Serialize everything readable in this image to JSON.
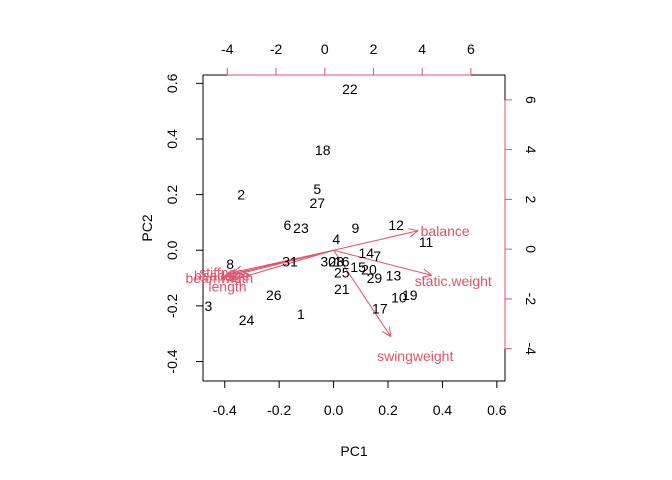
{
  "chart_data": {
    "type": "scatter",
    "subtype": "biplot",
    "xlabel": "PC1",
    "ylabel": "PC2",
    "xlim": [
      -0.48,
      0.63
    ],
    "ylim": [
      -0.47,
      0.63
    ],
    "xticks": [
      "-0.4",
      "-0.2",
      "0.0",
      "0.2",
      "0.4",
      "0.6"
    ],
    "xtick_values": [
      -0.4,
      -0.2,
      0.0,
      0.2,
      0.4,
      0.6
    ],
    "yticks": [
      "-0.4",
      "-0.2",
      "0.0",
      "0.2",
      "0.4",
      "0.6"
    ],
    "ytick_values": [
      -0.4,
      -0.2,
      0.0,
      0.2,
      0.4,
      0.6
    ],
    "top_axis": {
      "ticks": [
        "-4",
        "-2",
        "0",
        "2",
        "4",
        "6"
      ],
      "values": [
        -4,
        -2,
        0,
        2,
        4,
        6
      ],
      "lim": [
        -5.0,
        7.4
      ]
    },
    "right_axis": {
      "ticks": [
        "-4",
        "-2",
        "0",
        "2",
        "4",
        "6"
      ],
      "values": [
        -4,
        -2,
        0,
        2,
        4,
        6
      ],
      "lim": [
        -5.3,
        7.0
      ]
    },
    "observation_color": "#000000",
    "loading_color": "#DF536B",
    "observations": [
      {
        "label": "22",
        "x": 0.06,
        "y": 0.58
      },
      {
        "label": "18",
        "x": -0.04,
        "y": 0.36
      },
      {
        "label": "2",
        "x": -0.34,
        "y": 0.2
      },
      {
        "label": "5",
        "x": -0.06,
        "y": 0.22
      },
      {
        "label": "27",
        "x": -0.06,
        "y": 0.17
      },
      {
        "label": "6",
        "x": -0.17,
        "y": 0.09
      },
      {
        "label": "23",
        "x": -0.12,
        "y": 0.08
      },
      {
        "label": "9",
        "x": 0.08,
        "y": 0.08
      },
      {
        "label": "12",
        "x": 0.23,
        "y": 0.09
      },
      {
        "label": "11",
        "x": 0.34,
        "y": 0.03
      },
      {
        "label": "4",
        "x": 0.01,
        "y": 0.04
      },
      {
        "label": "14",
        "x": 0.12,
        "y": -0.01
      },
      {
        "label": "7",
        "x": 0.16,
        "y": -0.02
      },
      {
        "label": "8",
        "x": -0.38,
        "y": -0.05
      },
      {
        "label": "31",
        "x": -0.16,
        "y": -0.04
      },
      {
        "label": "30",
        "x": -0.02,
        "y": -0.04
      },
      {
        "label": "28",
        "x": 0.01,
        "y": -0.04
      },
      {
        "label": "16",
        "x": 0.03,
        "y": -0.04
      },
      {
        "label": "15",
        "x": 0.09,
        "y": -0.06
      },
      {
        "label": "20",
        "x": 0.13,
        "y": -0.07
      },
      {
        "label": "25",
        "x": 0.03,
        "y": -0.08
      },
      {
        "label": "29",
        "x": 0.15,
        "y": -0.1
      },
      {
        "label": "13",
        "x": 0.22,
        "y": -0.09
      },
      {
        "label": "21",
        "x": 0.03,
        "y": -0.14
      },
      {
        "label": "26",
        "x": -0.22,
        "y": -0.16
      },
      {
        "label": "19",
        "x": 0.28,
        "y": -0.16
      },
      {
        "label": "10",
        "x": 0.24,
        "y": -0.17
      },
      {
        "label": "17",
        "x": 0.17,
        "y": -0.21
      },
      {
        "label": "3",
        "x": -0.46,
        "y": -0.2
      },
      {
        "label": "24",
        "x": -0.32,
        "y": -0.25
      },
      {
        "label": "1",
        "x": -0.12,
        "y": -0.23
      }
    ],
    "loadings": [
      {
        "label": "balance",
        "x": 0.31,
        "y": 0.07,
        "label_x": 0.41,
        "label_y": 0.07
      },
      {
        "label": "static.weight",
        "x": 0.36,
        "y": -0.09,
        "label_x": 0.44,
        "label_y": -0.11
      },
      {
        "label": "swingweight",
        "x": 0.21,
        "y": -0.31,
        "label_x": 0.3,
        "label_y": -0.38
      },
      {
        "label": "length",
        "x": -0.38,
        "y": -0.11,
        "label_x": -0.39,
        "label_y": -0.13
      },
      {
        "label": "beamwidth",
        "x": -0.41,
        "y": -0.1,
        "label_x": -0.42,
        "label_y": -0.1
      },
      {
        "label": "headsize",
        "x": -0.39,
        "y": -0.09,
        "label_x": -0.41,
        "label_y": -0.09
      },
      {
        "label": "stiffness",
        "x": -0.37,
        "y": -0.08,
        "label_x": -0.4,
        "label_y": -0.08
      }
    ]
  }
}
